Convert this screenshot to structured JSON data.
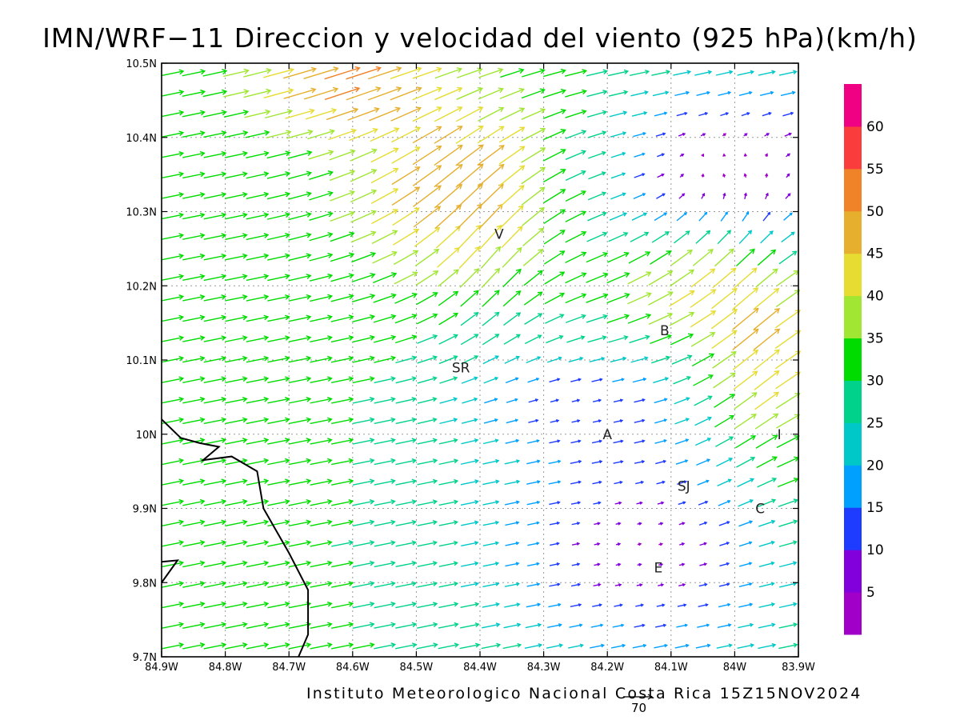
{
  "title": "IMN/WRF−11 Direccion y velocidad del viento (925 hPa)(km/h)",
  "footer": "Instituto Meteorologico Nacional Costa Rica 15Z15NOV2024",
  "reference_vector": {
    "value": "70"
  },
  "map": {
    "lon_range": [
      -84.9,
      -83.9
    ],
    "lat_range": [
      9.7,
      10.5
    ],
    "x_ticks": [
      {
        "lon": -84.9,
        "label": "84.9W"
      },
      {
        "lon": -84.8,
        "label": "84.8W"
      },
      {
        "lon": -84.7,
        "label": "84.7W"
      },
      {
        "lon": -84.6,
        "label": "84.6W"
      },
      {
        "lon": -84.5,
        "label": "84.5W"
      },
      {
        "lon": -84.4,
        "label": "84.4W"
      },
      {
        "lon": -84.3,
        "label": "84.3W"
      },
      {
        "lon": -84.2,
        "label": "84.2W"
      },
      {
        "lon": -84.1,
        "label": "84.1W"
      },
      {
        "lon": -84.0,
        "label": "84W"
      },
      {
        "lon": -83.9,
        "label": "83.9W"
      }
    ],
    "y_ticks": [
      {
        "lat": 10.5,
        "label": "10.5N"
      },
      {
        "lat": 10.4,
        "label": "10.4N"
      },
      {
        "lat": 10.3,
        "label": "10.3N"
      },
      {
        "lat": 10.2,
        "label": "10.2N"
      },
      {
        "lat": 10.1,
        "label": "10.1N"
      },
      {
        "lat": 10.0,
        "label": "10N"
      },
      {
        "lat": 9.9,
        "label": "9.9N"
      },
      {
        "lat": 9.8,
        "label": "9.8N"
      },
      {
        "lat": 9.7,
        "label": "9.7N"
      }
    ],
    "grid": true,
    "places": [
      {
        "label": "V",
        "lon": -84.37,
        "lat": 10.27
      },
      {
        "label": "SR",
        "lon": -84.43,
        "lat": 10.09
      },
      {
        "label": "B",
        "lon": -84.11,
        "lat": 10.14
      },
      {
        "label": "A",
        "lon": -84.2,
        "lat": 10.0
      },
      {
        "label": "I",
        "lon": -83.93,
        "lat": 10.0
      },
      {
        "label": "SJ",
        "lon": -84.08,
        "lat": 9.93
      },
      {
        "label": "C",
        "lon": -83.96,
        "lat": 9.9
      },
      {
        "label": "E",
        "lon": -84.12,
        "lat": 9.82
      }
    ],
    "coastline": [
      [
        -84.9,
        10.02
      ],
      [
        -84.87,
        9.995
      ],
      [
        -84.84,
        9.988
      ],
      [
        -84.81,
        9.983
      ],
      [
        -84.835,
        9.965
      ],
      [
        -84.79,
        9.97
      ],
      [
        -84.75,
        9.95
      ],
      [
        -84.74,
        9.9
      ],
      [
        -84.72,
        9.87
      ],
      [
        -84.7,
        9.84
      ],
      [
        -84.67,
        9.79
      ],
      [
        -84.67,
        9.73
      ],
      [
        -84.685,
        9.7
      ]
    ],
    "coastline_2": [
      [
        -84.9,
        9.8
      ],
      [
        -84.875,
        9.83
      ],
      [
        -84.9,
        9.828
      ]
    ]
  },
  "colorbar": {
    "labels": [
      {
        "value": 5,
        "label": "5"
      },
      {
        "value": 10,
        "label": "10"
      },
      {
        "value": 15,
        "label": "15"
      },
      {
        "value": 20,
        "label": "20"
      },
      {
        "value": 25,
        "label": "25"
      },
      {
        "value": 30,
        "label": "30"
      },
      {
        "value": 35,
        "label": "35"
      },
      {
        "value": 40,
        "label": "40"
      },
      {
        "value": 45,
        "label": "45"
      },
      {
        "value": 50,
        "label": "50"
      },
      {
        "value": 55,
        "label": "55"
      },
      {
        "value": 60,
        "label": "60"
      }
    ],
    "colors": [
      "#a000c8",
      "#8200dc",
      "#1e3cff",
      "#00a0ff",
      "#00c8c8",
      "#00d28c",
      "#00dc00",
      "#a0e632",
      "#e6dc32",
      "#e6af2d",
      "#f08228",
      "#fa3c3c",
      "#f00082"
    ],
    "range": [
      0,
      65
    ]
  }
}
